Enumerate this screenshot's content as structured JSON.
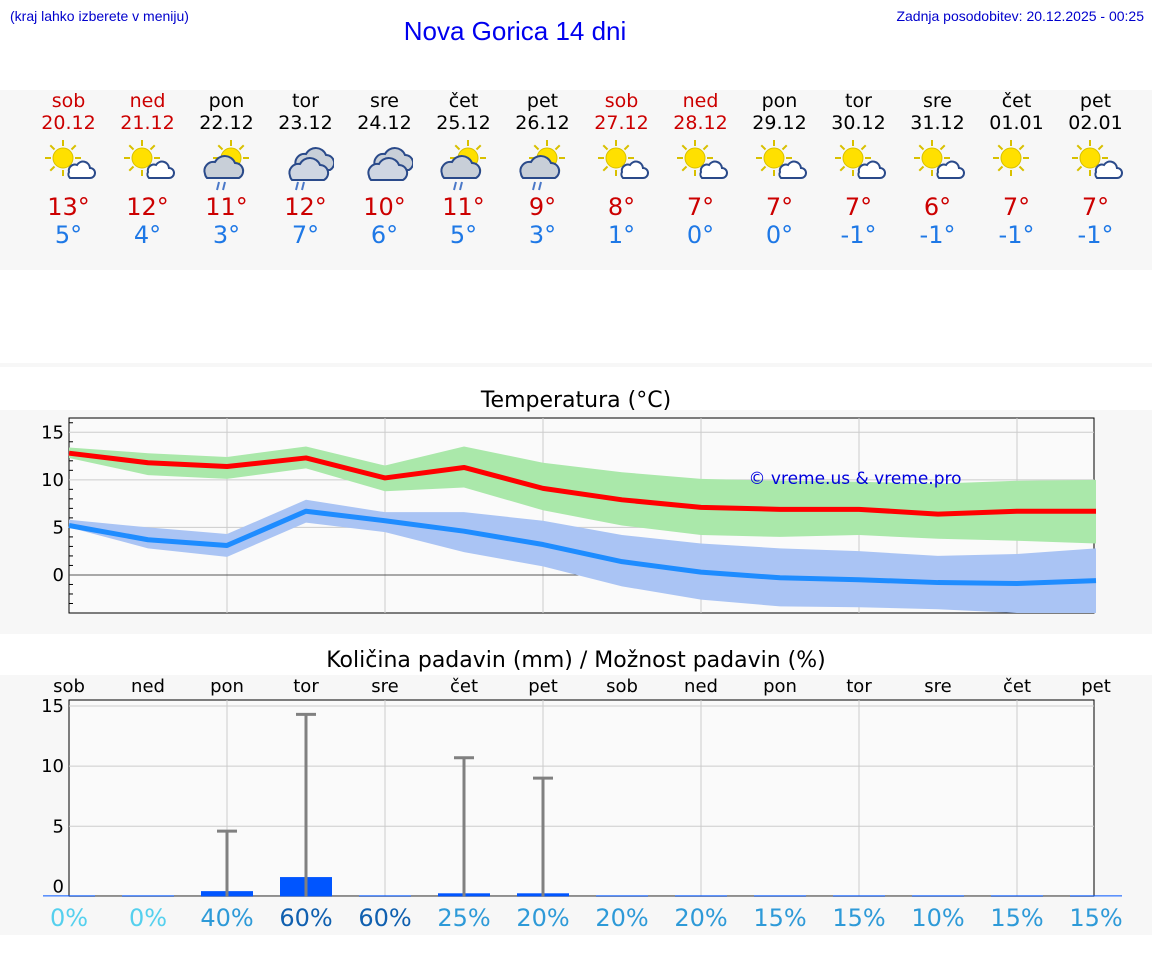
{
  "header": {
    "note": "(kraj lahko izberete v meniju)",
    "title": "Nova Gorica 14 dni",
    "update": "Zadnja posodobitev: 20.12.2025 - 00:25"
  },
  "days": [
    {
      "name": "sob",
      "date": "20.12",
      "weekend": true,
      "icon": "sun-cloud-icon",
      "tmax": "13°",
      "tmin": "5°"
    },
    {
      "name": "ned",
      "date": "21.12",
      "weekend": true,
      "icon": "sun-cloud-icon",
      "tmax": "12°",
      "tmin": "4°"
    },
    {
      "name": "pon",
      "date": "22.12",
      "weekend": false,
      "icon": "sun-cloud-rain-icon",
      "tmax": "11°",
      "tmin": "3°"
    },
    {
      "name": "tor",
      "date": "23.12",
      "weekend": false,
      "icon": "cloud-rain-icon",
      "tmax": "12°",
      "tmin": "7°"
    },
    {
      "name": "sre",
      "date": "24.12",
      "weekend": false,
      "icon": "cloud-icon",
      "tmax": "10°",
      "tmin": "6°"
    },
    {
      "name": "čet",
      "date": "25.12",
      "weekend": false,
      "icon": "sun-cloud-rain-icon",
      "tmax": "11°",
      "tmin": "5°"
    },
    {
      "name": "pet",
      "date": "26.12",
      "weekend": false,
      "icon": "sun-cloud-rain-icon",
      "tmax": "9°",
      "tmin": "3°"
    },
    {
      "name": "sob",
      "date": "27.12",
      "weekend": true,
      "icon": "sun-cloud-icon",
      "tmax": "8°",
      "tmin": "1°"
    },
    {
      "name": "ned",
      "date": "28.12",
      "weekend": true,
      "icon": "sun-cloud-icon",
      "tmax": "7°",
      "tmin": "0°"
    },
    {
      "name": "pon",
      "date": "29.12",
      "weekend": false,
      "icon": "sun-cloud-icon",
      "tmax": "7°",
      "tmin": "0°"
    },
    {
      "name": "tor",
      "date": "30.12",
      "weekend": false,
      "icon": "sun-cloud-icon",
      "tmax": "7°",
      "tmin": "-1°"
    },
    {
      "name": "sre",
      "date": "31.12",
      "weekend": false,
      "icon": "sun-cloud-icon",
      "tmax": "6°",
      "tmin": "-1°"
    },
    {
      "name": "čet",
      "date": "01.01",
      "weekend": false,
      "icon": "sun-icon",
      "tmax": "7°",
      "tmin": "-1°"
    },
    {
      "name": "pet",
      "date": "02.01",
      "weekend": false,
      "icon": "sun-cloud-icon",
      "tmax": "7°",
      "tmin": "-1°"
    }
  ],
  "colors": {
    "max_line": "#ff0000",
    "max_band": "#aae8aa",
    "min_line": "#1e8cff",
    "min_band": "#aac4f4",
    "precip_bar": "#0055ff",
    "error_bar": "#808080"
  },
  "chart_data": [
    {
      "type": "line",
      "title": "Temperatura (°C)",
      "watermark": "© vreme.us & vreme.pro",
      "x": [
        0,
        1,
        2,
        3,
        4,
        5,
        6,
        7,
        8,
        9,
        10,
        11,
        12,
        13
      ],
      "ylim": [
        -4,
        16.5
      ],
      "yticks": [
        0,
        5,
        10,
        15
      ],
      "series": [
        {
          "name": "max",
          "values": [
            12.8,
            11.8,
            11.4,
            12.3,
            10.2,
            11.3,
            9.1,
            7.9,
            7.1,
            6.9,
            6.9,
            6.4,
            6.7,
            6.7
          ],
          "band_low": [
            12.3,
            10.5,
            10.1,
            11.2,
            8.8,
            9.2,
            6.8,
            5.2,
            4.2,
            4.0,
            4.2,
            3.8,
            3.6,
            3.3
          ],
          "band_high": [
            13.4,
            12.8,
            12.4,
            13.5,
            11.5,
            13.5,
            11.8,
            10.8,
            10.1,
            9.9,
            9.8,
            9.6,
            9.9,
            10.0
          ]
        },
        {
          "name": "min",
          "values": [
            5.2,
            3.7,
            3.1,
            6.7,
            5.7,
            4.6,
            3.2,
            1.4,
            0.3,
            -0.3,
            -0.5,
            -0.8,
            -0.9,
            -0.6
          ],
          "band_low": [
            5.0,
            2.8,
            1.9,
            5.5,
            4.5,
            2.4,
            0.9,
            -1.2,
            -2.6,
            -3.3,
            -3.4,
            -3.6,
            -4.0,
            -4.0
          ],
          "band_high": [
            5.8,
            5.0,
            4.3,
            7.9,
            6.6,
            6.6,
            5.7,
            4.2,
            3.3,
            2.8,
            2.5,
            2.0,
            2.2,
            2.8
          ]
        }
      ]
    },
    {
      "type": "bar",
      "title": "Količina padavin (mm) / Možnost padavin (%)",
      "categories": [
        "sob",
        "ned",
        "pon",
        "tor",
        "sre",
        "čet",
        "pet",
        "sob",
        "ned",
        "pon",
        "tor",
        "sre",
        "čet",
        "pet"
      ],
      "ylim": [
        -0.8,
        15.5
      ],
      "yticks": [
        0,
        5,
        10,
        15
      ],
      "values": [
        0.0,
        0.0,
        0.3,
        1.6,
        0.0,
        0.1,
        0.1,
        0.0,
        0.0,
        0.0,
        0.0,
        0.0,
        0.0,
        0.0
      ],
      "error_max": [
        0,
        0,
        4.6,
        14.3,
        0,
        10.7,
        9.0,
        0,
        0,
        0,
        0,
        0,
        0,
        0
      ],
      "probability": [
        "0%",
        "0%",
        "40%",
        "60%",
        "60%",
        "25%",
        "20%",
        "20%",
        "20%",
        "15%",
        "15%",
        "10%",
        "15%",
        "15%"
      ],
      "probability_colors": [
        "#55d0ee",
        "#55d0ee",
        "#2e9ad8",
        "#1060b0",
        "#1060b0",
        "#2e9ad8",
        "#2e9ad8",
        "#2e9ad8",
        "#2e9ad8",
        "#2e9ad8",
        "#2e9ad8",
        "#2e9ad8",
        "#2e9ad8",
        "#2e9ad8"
      ]
    }
  ]
}
